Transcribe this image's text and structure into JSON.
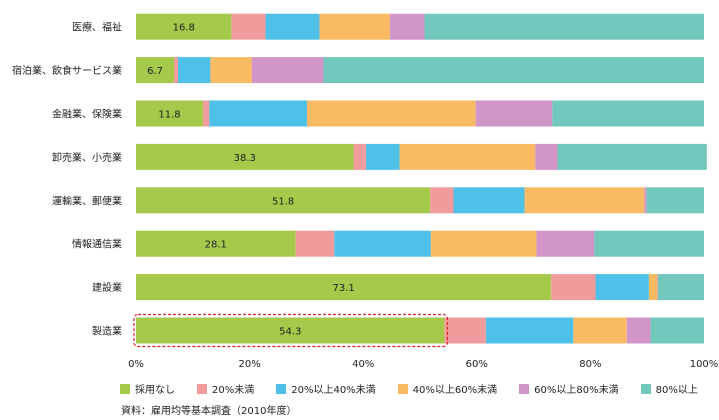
{
  "chart_data": {
    "type": "bar",
    "orientation": "horizontal",
    "stacked": true,
    "categories": [
      "医療、福祉",
      "宿泊業、飲食サービス業",
      "金融業、保険業",
      "卸売業、小売業",
      "運輸業、郵便業",
      "情報通信業",
      "建設業",
      "製造業"
    ],
    "series": [
      {
        "name": "採用なし",
        "color": "#a5c94a",
        "values": [
          16.8,
          6.7,
          11.8,
          38.3,
          51.8,
          28.1,
          73.1,
          54.3
        ]
      },
      {
        "name": "20%未満",
        "color": "#f19c9c",
        "values": [
          6.0,
          0.7,
          1.1,
          2.2,
          4.1,
          6.8,
          7.8,
          7.3
        ]
      },
      {
        "name": "20%以上40%未満",
        "color": "#4fc0e8",
        "values": [
          9.5,
          5.7,
          17.2,
          5.9,
          12.5,
          17.0,
          9.4,
          15.4
        ]
      },
      {
        "name": "40%以上60%未満",
        "color": "#f8bb63",
        "values": [
          12.4,
          7.3,
          29.7,
          23.9,
          21.1,
          18.6,
          1.5,
          9.4
        ]
      },
      {
        "name": "60%以上80%未満",
        "color": "#d195c8",
        "values": [
          6.1,
          12.6,
          13.5,
          3.9,
          0.4,
          10.2,
          0.1,
          4.2
        ]
      },
      {
        "name": "80%以上",
        "color": "#73c8bd",
        "values": [
          49.2,
          67.0,
          26.7,
          26.3,
          10.1,
          19.3,
          8.1,
          9.4
        ]
      }
    ],
    "xlim": [
      0,
      100
    ],
    "xticks": [
      "0%",
      "20%",
      "40%",
      "60%",
      "80%",
      "100%"
    ],
    "data_labels": [
      "16.8",
      "6.7",
      "11.8",
      "38.3",
      "51.8",
      "28.1",
      "73.1",
      "54.3"
    ],
    "highlight_category": "製造業",
    "legend_position": "bottom"
  },
  "source": "資料：雇用均等基本調査（2010年度）"
}
